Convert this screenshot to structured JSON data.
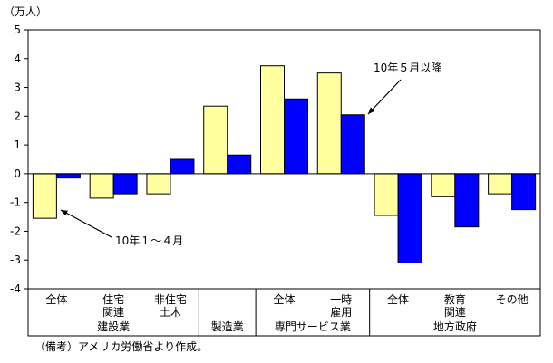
{
  "chart_data": {
    "type": "bar",
    "ylabel": "（万人）",
    "ylim": [
      -4,
      5
    ],
    "yticks": [
      "-4",
      "-3",
      "-2",
      "-1",
      "0",
      "1",
      "2",
      "3",
      "4",
      "5"
    ],
    "grid": false,
    "categories": [
      [
        "全体"
      ],
      [
        "住宅",
        "関連"
      ],
      [
        "非住宅",
        "土木"
      ],
      [
        ""
      ],
      [
        "全体"
      ],
      [
        "一時",
        "雇用"
      ],
      [
        "全体"
      ],
      [
        "教育",
        "関連"
      ],
      [
        "その他"
      ]
    ],
    "groups": [
      {
        "label": "建設業"
      },
      {
        "label": "製造業"
      },
      {
        "label": "専門サービス業"
      },
      {
        "label": "地方政府"
      }
    ],
    "series": [
      {
        "name": "10年１～４月",
        "color": "#ffffa0",
        "values": [
          -1.55,
          -0.85,
          -0.7,
          2.35,
          3.75,
          3.5,
          -1.45,
          -0.8,
          -0.7
        ]
      },
      {
        "name": "10年５月以降",
        "color": "#0000ff",
        "values": [
          -0.15,
          -0.7,
          0.5,
          0.65,
          2.6,
          2.05,
          -3.1,
          -1.85,
          -1.25
        ]
      }
    ],
    "annotations": [
      {
        "text": "10年５月以降"
      },
      {
        "text": "10年１～４月"
      }
    ]
  },
  "note": "（備考）アメリカ労働省より作成。"
}
